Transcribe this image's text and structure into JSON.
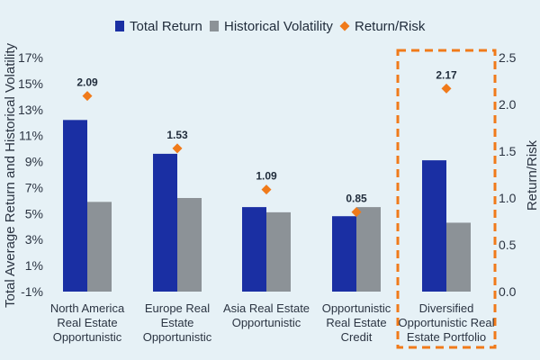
{
  "chart_data": {
    "type": "bar",
    "categories": [
      [
        "North America",
        "Real Estate",
        "Opportunistic"
      ],
      [
        "Europe Real",
        "Estate",
        "Opportunistic"
      ],
      [
        "Asia Real Estate",
        "Opportunistic"
      ],
      [
        "Opportunistic",
        "Real Estate",
        "Credit"
      ],
      [
        "Diversified",
        "Opportunistic Real",
        "Estate Portfolio"
      ]
    ],
    "series": [
      {
        "name": "Total Return",
        "axis": "left",
        "kind": "bar",
        "color": "#1a2fa3",
        "values": [
          12.2,
          9.6,
          5.5,
          4.8,
          9.1
        ]
      },
      {
        "name": "Historical Volatility",
        "axis": "left",
        "kind": "bar",
        "color": "#8c9297",
        "values": [
          5.9,
          6.2,
          5.1,
          5.5,
          4.3
        ]
      },
      {
        "name": "Return/Risk",
        "axis": "right",
        "kind": "marker",
        "color": "#f07a1a",
        "values": [
          2.09,
          1.53,
          1.09,
          0.85,
          2.17
        ],
        "labels": [
          "2.09",
          "1.53",
          "1.09",
          "0.85",
          "2.17"
        ]
      }
    ],
    "ylabel": "Total Average Return and Historical Volatility",
    "y2label": "Return/Risk",
    "ylim": [
      -1,
      17
    ],
    "y2lim": [
      0,
      2.5
    ],
    "yticks": [
      "-1%",
      "1%",
      "3%",
      "5%",
      "7%",
      "9%",
      "11%",
      "13%",
      "15%",
      "17%"
    ],
    "y2ticks": [
      "0.0",
      "0.5",
      "1.0",
      "1.5",
      "2.0",
      "2.5"
    ],
    "highlight_category": 4,
    "highlight_color": "#f07a1a",
    "legend_position": "top"
  }
}
